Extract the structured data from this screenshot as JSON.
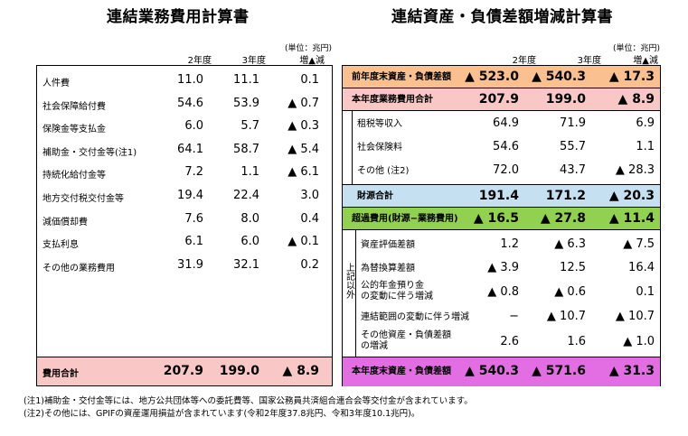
{
  "left": {
    "title": "連結業務費用計算書",
    "unit": "(単位：兆円)",
    "headers": [
      "2年度",
      "3年度",
      "増▲減"
    ],
    "rows": [
      {
        "label": "人件費",
        "v1": "11.0",
        "v2": "11.1",
        "v3": "0.1"
      },
      {
        "label": "社会保障給付費",
        "v1": "54.6",
        "v2": "53.9",
        "v3": "▲ 0.7"
      },
      {
        "label": "保険金等支払金",
        "v1": "6.0",
        "v2": "5.7",
        "v3": "▲ 0.3"
      },
      {
        "label": "補助金・交付金等(注1)",
        "v1": "64.1",
        "v2": "58.7",
        "v3": "▲ 5.4"
      },
      {
        "label": "持続化給付金等",
        "v1": "7.2",
        "v2": "1.1",
        "v3": "▲ 6.1"
      },
      {
        "label": "地方交付税交付金等",
        "v1": "19.4",
        "v2": "22.4",
        "v3": "3.0"
      },
      {
        "label": "減価償却費",
        "v1": "7.6",
        "v2": "8.0",
        "v3": "0.4"
      },
      {
        "label": "支払利息",
        "v1": "6.1",
        "v2": "6.0",
        "v3": "▲ 0.1"
      },
      {
        "label": "その他の業務費用",
        "v1": "31.9",
        "v2": "32.1",
        "v3": "0.2"
      }
    ],
    "total": {
      "label": "費用合計",
      "v1": "207.9",
      "v2": "199.0",
      "v3": "▲ 8.9"
    }
  },
  "right": {
    "title": "連結資産・負債差額増減計算書",
    "unit": "(単位：兆円)",
    "headers": [
      "2年度",
      "3年度",
      "増▲減"
    ],
    "rows": {
      "prev_balance": {
        "label": "前年度末資産・負債差額",
        "v1": "▲ 523.0",
        "v2": "▲ 540.3",
        "v3": "▲ 17.3",
        "color": "#fac090"
      },
      "cost_total": {
        "label": "本年度業務費用合計",
        "v1": "207.9",
        "v2": "199.0",
        "v3": "▲ 8.9",
        "color": "#f9c7c5"
      },
      "tax": {
        "label": "租税等収入",
        "v1": "64.9",
        "v2": "71.9",
        "v3": "6.9"
      },
      "social": {
        "label": "社会保険料",
        "v1": "54.6",
        "v2": "55.7",
        "v3": "1.1"
      },
      "other": {
        "label": "その他 (注2)",
        "v1": "72.0",
        "v2": "43.7",
        "v3": "▲ 28.3"
      },
      "revenue_total": {
        "label": "財源合計",
        "v1": "191.4",
        "v2": "171.2",
        "v3": "▲ 20.3",
        "color": "#c5e0f0"
      },
      "excess": {
        "label": "超過費用(財源−業務費用)",
        "v1": "▲ 16.5",
        "v2": "▲ 27.8",
        "v3": "▲ 11.4",
        "color": "#92d050"
      },
      "asset_val": {
        "label": "資産評価差額",
        "v1": "1.2",
        "v2": "▲ 6.3",
        "v3": "▲ 7.5"
      },
      "fx": {
        "label": "為替換算差額",
        "v1": "▲ 3.9",
        "v2": "12.5",
        "v3": "16.4"
      },
      "pension_line1": "公的年金預り金",
      "pension_line2": "の変動に伴う増減",
      "pension": {
        "v1": "▲ 0.8",
        "v2": "▲ 0.6",
        "v3": "0.1"
      },
      "scope": {
        "label": "連結範囲の変動に伴う増減",
        "v1": "−",
        "v2": "▲ 10.7",
        "v3": "▲ 10.7"
      },
      "other_ad_line1": "その他資産・負債差額",
      "other_ad_line2": "の増減",
      "other_ad": {
        "v1": "2.6",
        "v2": "1.6",
        "v3": "▲ 1.0"
      },
      "end_balance": {
        "label": "本年度末資産・負債差額",
        "v1": "▲ 540.3",
        "v2": "▲ 571.6",
        "v3": "▲ 31.3",
        "color": "#e36ee3"
      }
    },
    "side_label": "上記以外"
  },
  "notes": [
    "(注1)補助金・交付金等には、地方公共団体等への委託費等、国家公務員共済組合連合会等交付金が含まれています。",
    "(注2)その他には、GPIFの資産運用損益が含まれています(令和2年度37.8兆円、令和3年度10.1兆円)。"
  ]
}
